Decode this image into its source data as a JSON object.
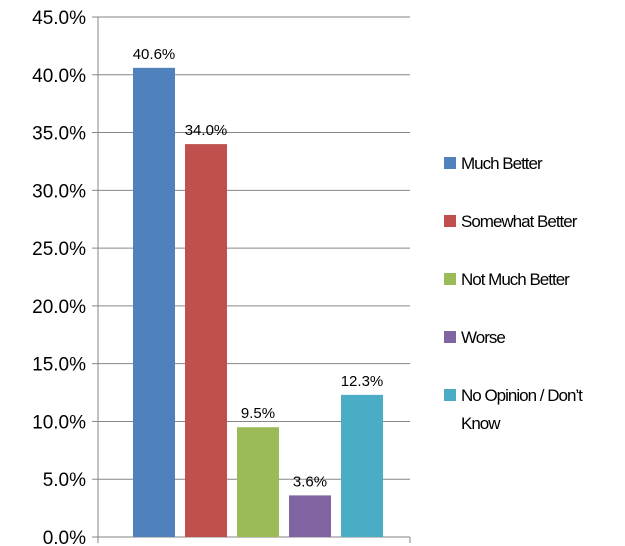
{
  "chart_data": {
    "type": "bar",
    "categories": [
      "Much Better",
      "Somewhat Better",
      "Not Much Better",
      "Worse",
      "No Opinion / Don't Know"
    ],
    "values": [
      40.6,
      34.0,
      9.5,
      3.6,
      12.3
    ],
    "value_labels": [
      "40.6%",
      "34.0%",
      "9.5%",
      "3.6%",
      "12.3%"
    ],
    "colors": [
      "#4f81bd",
      "#c0504d",
      "#9bbb59",
      "#8064a2",
      "#4bacc6"
    ],
    "ylim": [
      0,
      45
    ],
    "y_ticks": [
      "0.0%",
      "5.0%",
      "10.0%",
      "15.0%",
      "20.0%",
      "25.0%",
      "30.0%",
      "35.0%",
      "40.0%",
      "45.0%"
    ],
    "legend": [
      {
        "lines": [
          "Much Better"
        ]
      },
      {
        "lines": [
          "Somewhat Better"
        ]
      },
      {
        "lines": [
          "Not Much Better"
        ]
      },
      {
        "lines": [
          "Worse"
        ]
      },
      {
        "lines": [
          "No Opinion / Don’t",
          "Know"
        ]
      }
    ],
    "legend_position": "right",
    "grid": true,
    "title": "",
    "xlabel": "",
    "ylabel": ""
  }
}
